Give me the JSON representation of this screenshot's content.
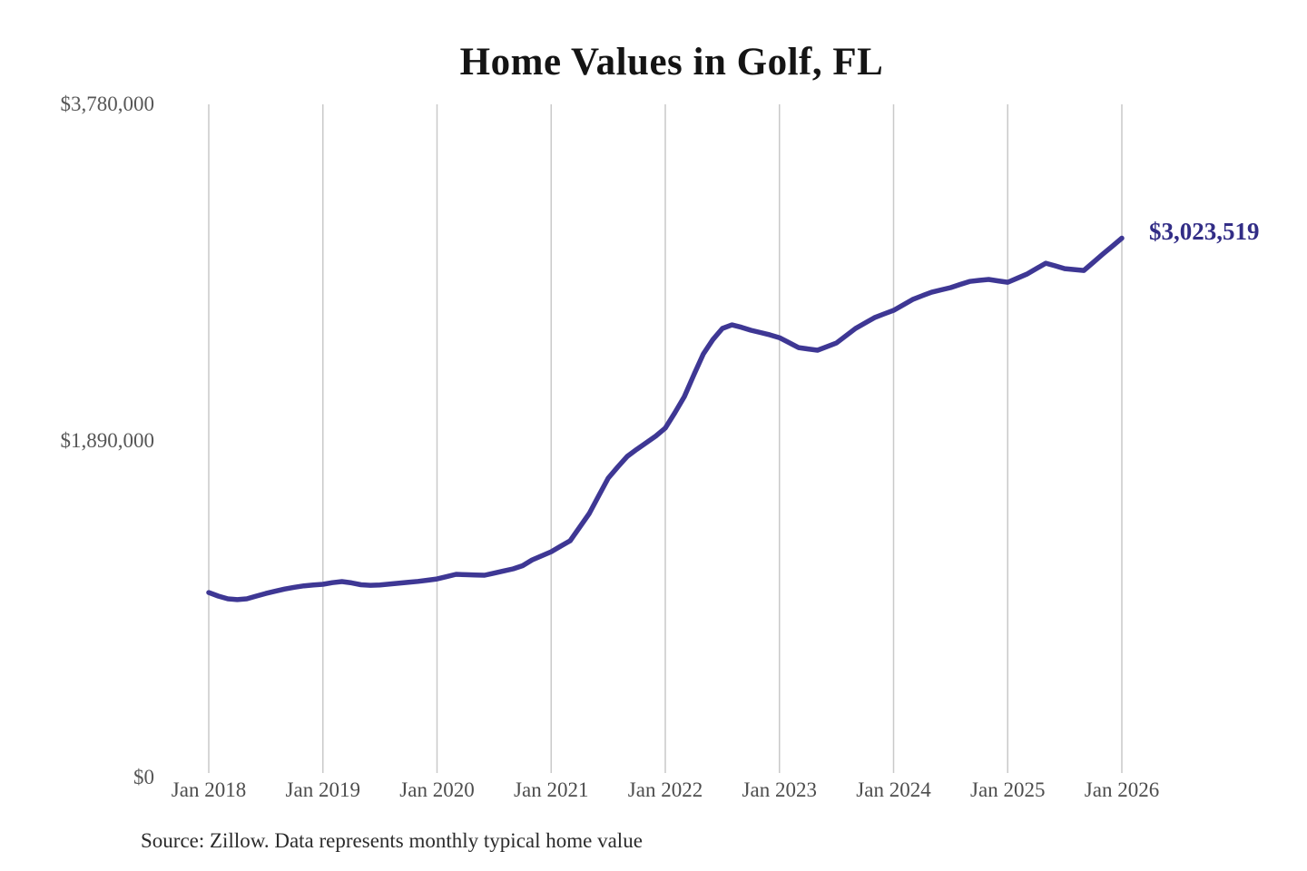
{
  "chart": {
    "title": "Home Values in Golf, FL",
    "end_value_label": "$3,023,519",
    "source_note": "Source: Zillow. Data represents monthly typical home value",
    "colors": {
      "line": "#3e3794",
      "end_label": "#322d86",
      "grid": "#c9c9c9",
      "axis_text": "#565656",
      "title_text": "#141414"
    },
    "y_ticks": [
      {
        "label": "$3,780,000"
      },
      {
        "label": "$1,890,000"
      },
      {
        "label": "$0"
      }
    ]
  },
  "chart_data": {
    "type": "line",
    "title": "Home Values in Golf, FL",
    "series_name": "Monthly typical home value",
    "x_start": "Jan 2018",
    "x_end": "Jan 2026",
    "x_interval": "month",
    "xtick_labels": [
      "Jan 2018",
      "Jan 2019",
      "Jan 2020",
      "Jan 2021",
      "Jan 2022",
      "Jan 2023",
      "Jan 2024",
      "Jan 2025",
      "Jan 2026"
    ],
    "ytick_labels": [
      "$0",
      "$1,890,000",
      "$3,780,000"
    ],
    "ylim": [
      0,
      3780000
    ],
    "grid": "vertical-only",
    "legend": "none",
    "last_value": 3023519,
    "last_value_label": "$3,023,519",
    "source": "Source: Zillow. Data represents monthly typical home value",
    "values": [
      1020000,
      1000000,
      985000,
      980000,
      985000,
      1000000,
      1015000,
      1028000,
      1040000,
      1050000,
      1058000,
      1063000,
      1067000,
      1076000,
      1082000,
      1075000,
      1064000,
      1061000,
      1063000,
      1068000,
      1073000,
      1078000,
      1083000,
      1090000,
      1097000,
      1110000,
      1123000,
      1121000,
      1119000,
      1118000,
      1130000,
      1142000,
      1154000,
      1172000,
      1205000,
      1228000,
      1251000,
      1282000,
      1313000,
      1390000,
      1467000,
      1567000,
      1667000,
      1730000,
      1790000,
      1830000,
      1867000,
      1905000,
      1950000,
      2036000,
      2128000,
      2250000,
      2369000,
      2450000,
      2513000,
      2533000,
      2520000,
      2503000,
      2490000,
      2477000,
      2461000,
      2433000,
      2405000,
      2397000,
      2390000,
      2410000,
      2431000,
      2472000,
      2513000,
      2544000,
      2574000,
      2595000,
      2615000,
      2646000,
      2677000,
      2698000,
      2718000,
      2731000,
      2744000,
      2762000,
      2779000,
      2785000,
      2790000,
      2782000,
      2774000,
      2797000,
      2820000,
      2851000,
      2882000,
      2867000,
      2851000,
      2846000,
      2841000,
      2887000,
      2933000,
      2978000,
      3023519
    ]
  }
}
